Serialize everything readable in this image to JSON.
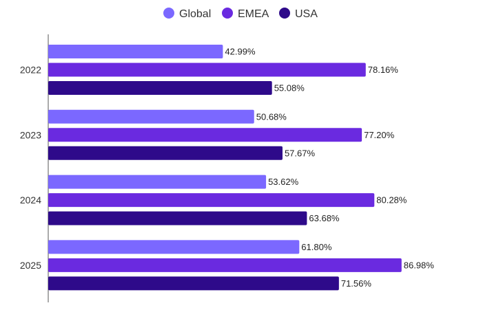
{
  "chart_data": {
    "type": "bar",
    "orientation": "horizontal",
    "categories": [
      "2022",
      "2023",
      "2024",
      "2025"
    ],
    "series": [
      {
        "name": "Global",
        "color": "#7b68ff",
        "values": [
          42.99,
          50.68,
          53.62,
          61.8
        ],
        "labels": [
          "42.99%",
          "50.68%",
          "53.62%",
          "61.80%"
        ]
      },
      {
        "name": "EMEA",
        "color": "#6a2ae0",
        "values": [
          78.16,
          77.2,
          80.28,
          86.98
        ],
        "labels": [
          "78.16%",
          "77.20%",
          "80.28%",
          "86.98%"
        ]
      },
      {
        "name": "USA",
        "color": "#2e0a8a",
        "values": [
          55.08,
          57.67,
          63.68,
          71.56
        ],
        "labels": [
          "55.08%",
          "57.67%",
          "63.68%",
          "71.56%"
        ]
      }
    ],
    "xlim": [
      0,
      100
    ],
    "grid": false,
    "legend": "top-center",
    "title": "",
    "xlabel": "",
    "ylabel": ""
  }
}
